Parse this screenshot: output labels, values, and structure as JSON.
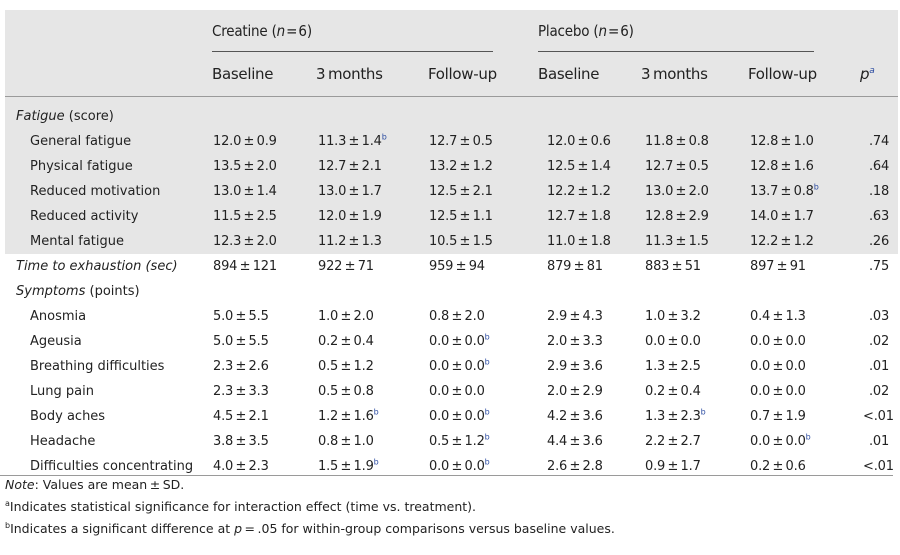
{
  "groups": [
    {
      "name": "Creatine",
      "n_label": "n",
      "n_value": "6"
    },
    {
      "name": "Placebo",
      "n_label": "n",
      "n_value": "6"
    }
  ],
  "columns": [
    "Baseline",
    "3 months",
    "Follow-up",
    "Baseline",
    "3 months",
    "Follow-up"
  ],
  "p_column": {
    "label": "p",
    "sup": "a"
  },
  "rows": [
    {
      "type": "section",
      "label": "Fatigue",
      "label_suffix": " (score)",
      "shaded": true
    },
    {
      "type": "item",
      "label": "General fatigue",
      "shaded": true,
      "cells": [
        {
          "v": "12.0 ± 0.9"
        },
        {
          "v": "11.3 ± 1.4",
          "sup": "b"
        },
        {
          "v": "12.7 ± 0.5"
        },
        {
          "v": "12.0 ± 0.6"
        },
        {
          "v": "11.8 ± 0.8"
        },
        {
          "v": "12.8 ± 1.0"
        }
      ],
      "p": ".74"
    },
    {
      "type": "item",
      "label": "Physical fatigue",
      "shaded": true,
      "cells": [
        {
          "v": "13.5 ± 2.0"
        },
        {
          "v": "12.7 ± 2.1"
        },
        {
          "v": "13.2 ± 1.2"
        },
        {
          "v": "12.5 ± 1.4"
        },
        {
          "v": "12.7 ± 0.5"
        },
        {
          "v": "12.8 ± 1.6"
        }
      ],
      "p": ".64"
    },
    {
      "type": "item",
      "label": "Reduced motivation",
      "shaded": true,
      "cells": [
        {
          "v": "13.0 ± 1.4"
        },
        {
          "v": "13.0 ± 1.7"
        },
        {
          "v": "12.5 ± 2.1"
        },
        {
          "v": "12.2 ± 1.2"
        },
        {
          "v": "13.0 ± 2.0"
        },
        {
          "v": "13.7 ± 0.8",
          "sup": "b"
        }
      ],
      "p": ".18"
    },
    {
      "type": "item",
      "label": "Reduced activity",
      "shaded": true,
      "cells": [
        {
          "v": "11.5 ± 2.5"
        },
        {
          "v": "12.0 ± 1.9"
        },
        {
          "v": "12.5 ± 1.1"
        },
        {
          "v": "12.7 ± 1.8"
        },
        {
          "v": "12.8 ± 2.9"
        },
        {
          "v": "14.0 ± 1.7"
        }
      ],
      "p": ".63"
    },
    {
      "type": "item",
      "label": "Mental fatigue",
      "shaded": true,
      "cells": [
        {
          "v": "12.3 ± 2.0"
        },
        {
          "v": "11.2 ± 1.3"
        },
        {
          "v": "10.5 ± 1.5"
        },
        {
          "v": "11.0 ± 1.8"
        },
        {
          "v": "11.3 ± 1.5"
        },
        {
          "v": "12.2 ± 1.2"
        }
      ],
      "p": ".26"
    },
    {
      "type": "main",
      "label": "Time to exhaustion (sec)",
      "shaded": false,
      "cells": [
        {
          "v": "894 ± 121"
        },
        {
          "v": "922 ± 71"
        },
        {
          "v": "959 ± 94"
        },
        {
          "v": "879 ± 81"
        },
        {
          "v": "883 ± 51"
        },
        {
          "v": "897 ± 91"
        }
      ],
      "p": ".75"
    },
    {
      "type": "section",
      "label": "Symptoms",
      "label_suffix": " (points)",
      "shaded": false
    },
    {
      "type": "item",
      "label": "Anosmia",
      "shaded": false,
      "cells": [
        {
          "v": "5.0 ± 5.5"
        },
        {
          "v": "1.0 ± 2.0"
        },
        {
          "v": "0.8 ± 2.0"
        },
        {
          "v": "2.9 ± 4.3"
        },
        {
          "v": "1.0 ± 3.2"
        },
        {
          "v": "0.4 ± 1.3"
        }
      ],
      "p": ".03"
    },
    {
      "type": "item",
      "label": "Ageusia",
      "shaded": false,
      "cells": [
        {
          "v": "5.0 ± 5.5"
        },
        {
          "v": "0.2 ± 0.4"
        },
        {
          "v": "0.0 ± 0.0",
          "sup": "b"
        },
        {
          "v": "2.0 ± 3.3"
        },
        {
          "v": "0.0 ± 0.0"
        },
        {
          "v": "0.0 ± 0.0"
        }
      ],
      "p": ".02"
    },
    {
      "type": "item",
      "label": "Breathing difficulties",
      "shaded": false,
      "cells": [
        {
          "v": "2.3 ± 2.6"
        },
        {
          "v": "0.5 ± 1.2"
        },
        {
          "v": "0.0 ± 0.0",
          "sup": "b"
        },
        {
          "v": "2.9 ± 3.6"
        },
        {
          "v": "1.3 ± 2.5"
        },
        {
          "v": "0.0 ± 0.0"
        }
      ],
      "p": ".01"
    },
    {
      "type": "item",
      "label": "Lung pain",
      "shaded": false,
      "cells": [
        {
          "v": "2.3 ± 3.3"
        },
        {
          "v": "0.5 ± 0.8"
        },
        {
          "v": "0.0 ± 0.0"
        },
        {
          "v": "2.0 ± 2.9"
        },
        {
          "v": "0.2 ± 0.4"
        },
        {
          "v": "0.0 ± 0.0"
        }
      ],
      "p": ".02"
    },
    {
      "type": "item",
      "label": "Body aches",
      "shaded": false,
      "cells": [
        {
          "v": "4.5 ± 2.1"
        },
        {
          "v": "1.2 ± 1.6",
          "sup": "b"
        },
        {
          "v": "0.0 ± 0.0",
          "sup": "b"
        },
        {
          "v": "4.2 ± 3.6"
        },
        {
          "v": "1.3 ± 2.3",
          "sup": "b"
        },
        {
          "v": "0.7 ± 1.9"
        }
      ],
      "p": "<.01"
    },
    {
      "type": "item",
      "label": "Headache",
      "shaded": false,
      "cells": [
        {
          "v": "3.8 ± 3.5"
        },
        {
          "v": "0.8 ± 1.0"
        },
        {
          "v": "0.5 ± 1.2",
          "sup": "b"
        },
        {
          "v": "4.4 ± 3.6"
        },
        {
          "v": "2.2 ± 2.7"
        },
        {
          "v": "0.0 ± 0.0",
          "sup": "b"
        }
      ],
      "p": ".01"
    },
    {
      "type": "item",
      "label": "Difficulties concentrating",
      "shaded": false,
      "cells": [
        {
          "v": "4.0 ± 2.3"
        },
        {
          "v": "1.5 ± 1.9",
          "sup": "b"
        },
        {
          "v": "0.0 ± 0.0",
          "sup": "b"
        },
        {
          "v": "2.6 ± 2.8"
        },
        {
          "v": "0.9 ± 1.7"
        },
        {
          "v": "0.2 ± 0.6"
        }
      ],
      "p": "<.01"
    }
  ],
  "notes": [
    {
      "lead": "Note",
      "text": ": Values are mean ± SD."
    },
    {
      "sup": "a",
      "text": "Indicates statistical significance for interaction effect (time vs. treatment)."
    },
    {
      "sup": "b",
      "text": "Indicates a significant difference at p = .05 for within-group comparisons versus baseline values."
    }
  ]
}
